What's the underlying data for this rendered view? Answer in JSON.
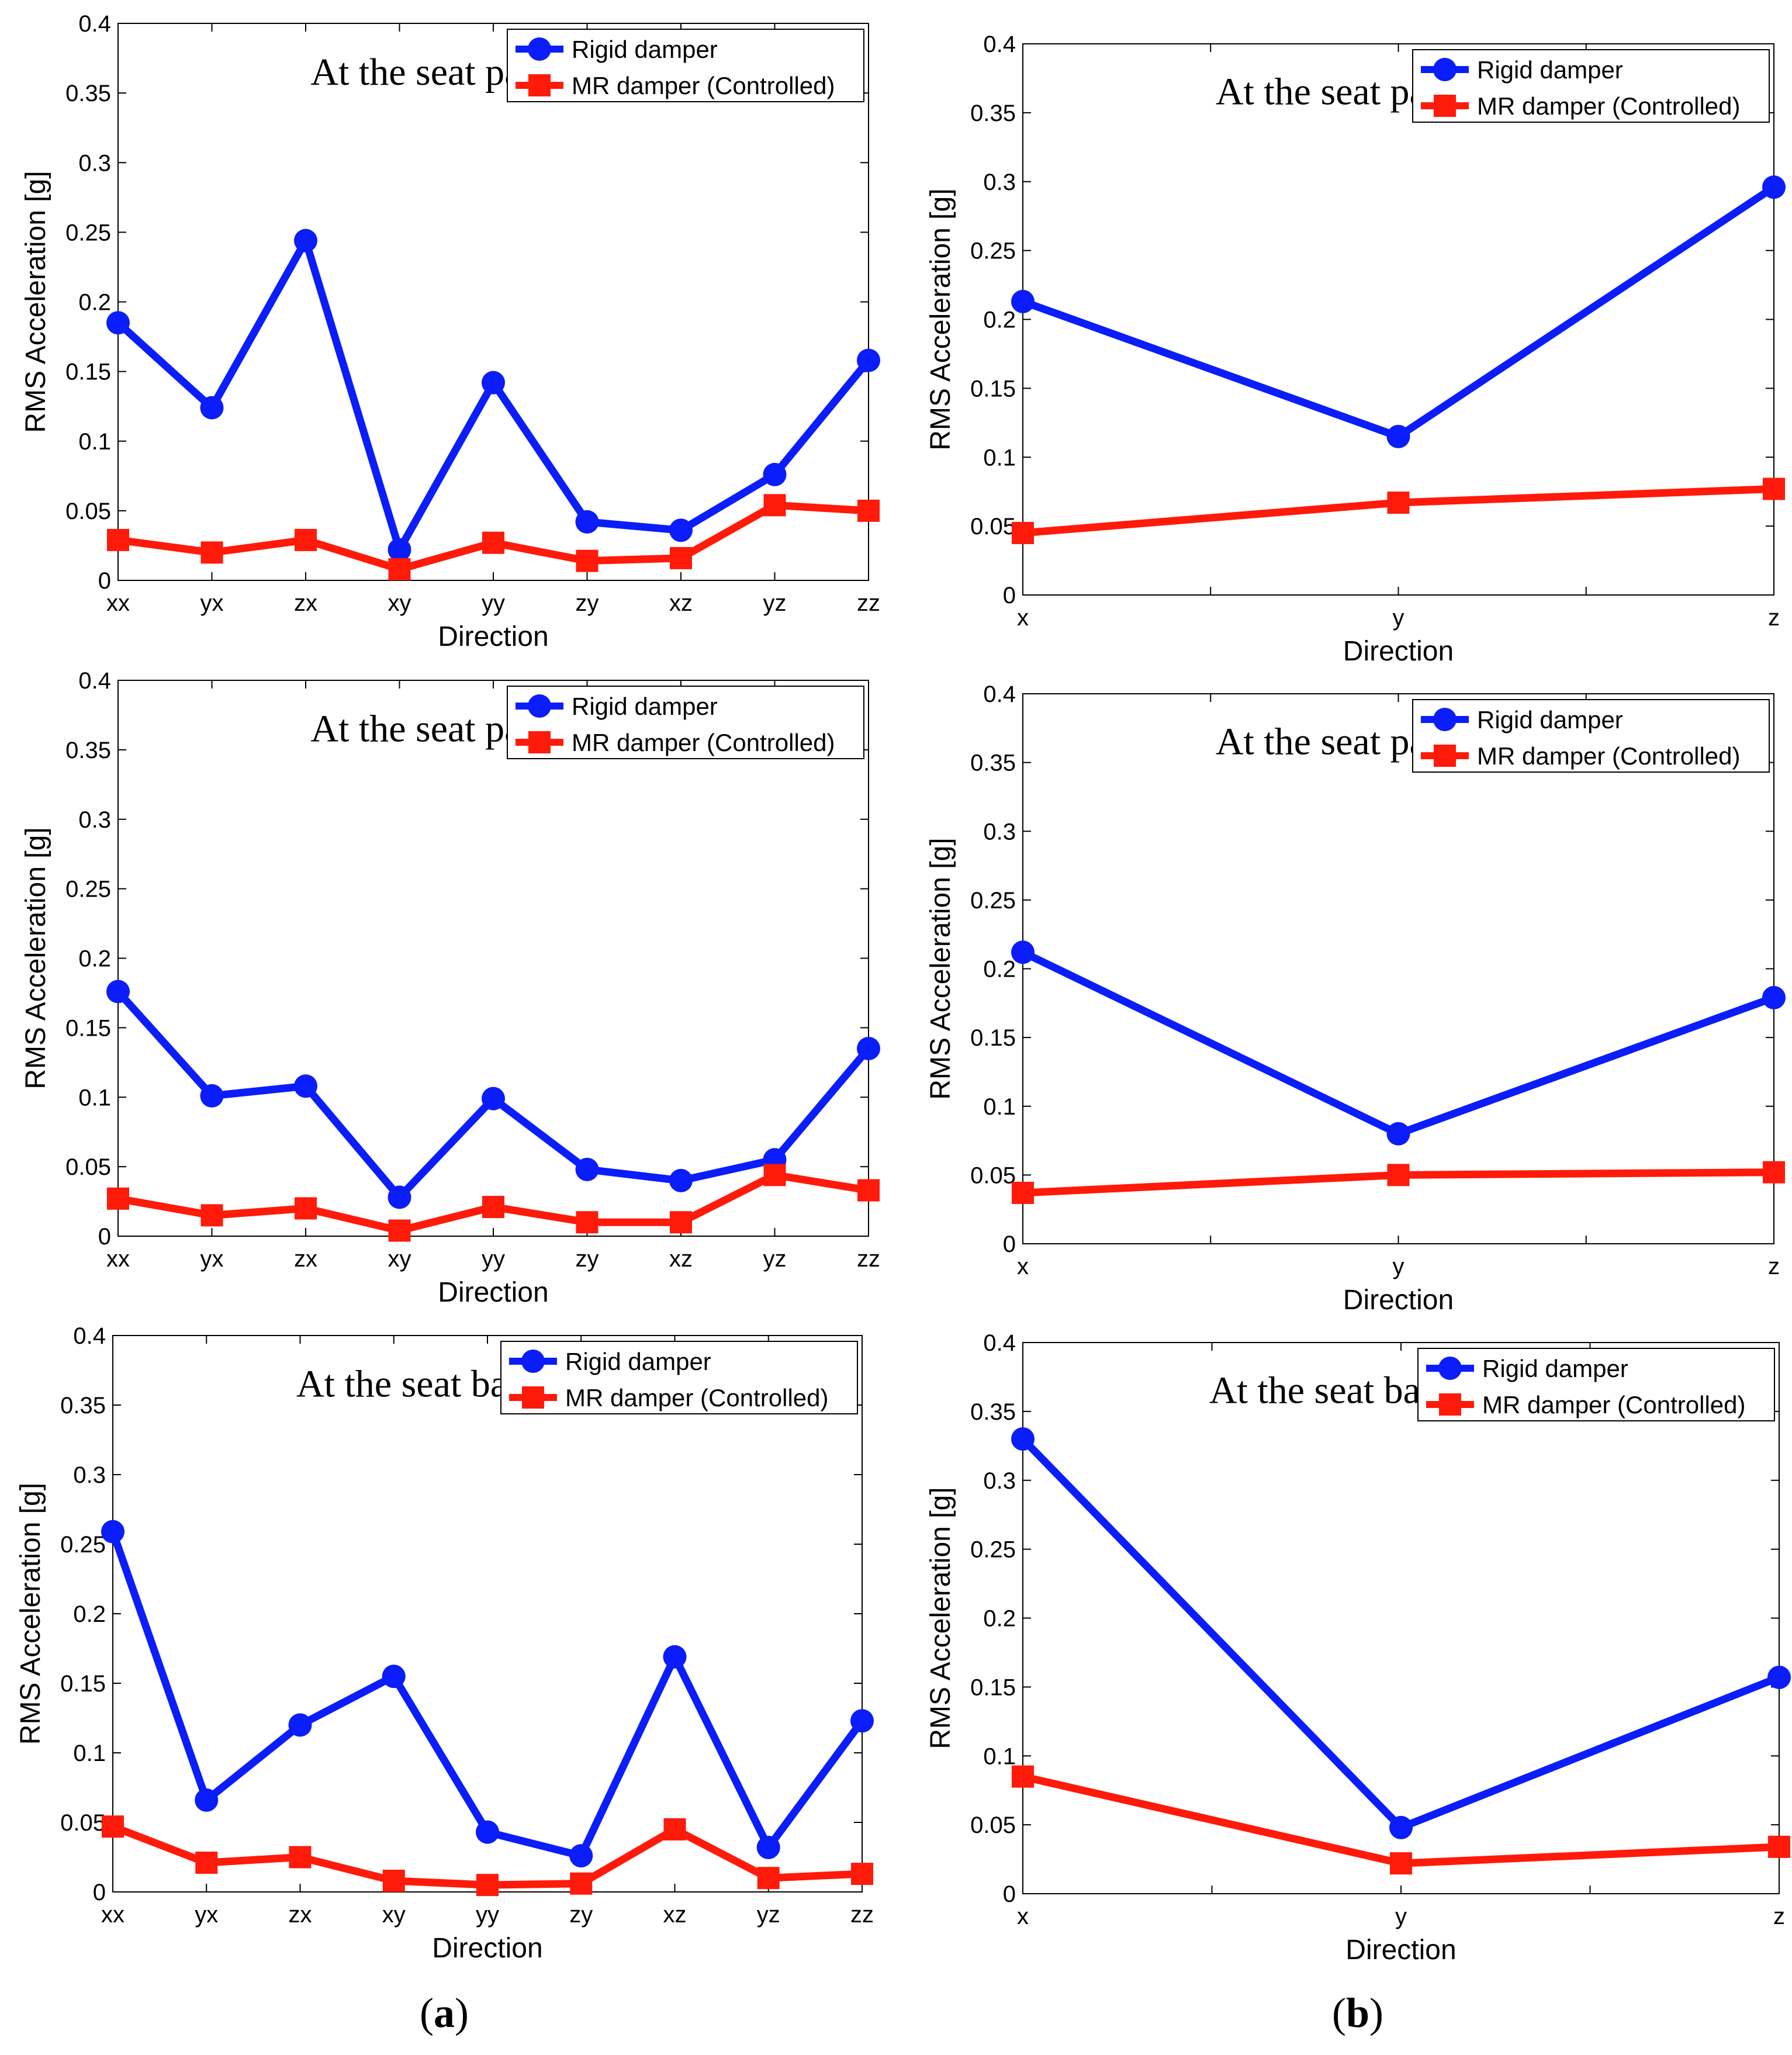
{
  "sub_labels": [
    "(a)",
    "(b)"
  ],
  "colors": {
    "rigid": "#0a1dfa",
    "mr": "#ff1a0a"
  },
  "chart_data": [
    {
      "id": "a1",
      "type": "line",
      "title": "At the seat pan",
      "xlabel": "Direction",
      "ylabel": "RMS Acceleration [g]",
      "categories": [
        "xx",
        "yx",
        "zx",
        "xy",
        "yy",
        "zy",
        "xz",
        "yz",
        "zz"
      ],
      "ylim": [
        0,
        0.4
      ],
      "yticks": [
        "0",
        "0.05",
        "0.1",
        "0.15",
        "0.2",
        "0.25",
        "0.3",
        "0.35",
        "0.4"
      ],
      "legend": [
        "Rigid damper",
        "MR damper (Controlled)"
      ],
      "series": [
        {
          "name": "Rigid damper",
          "values": [
            0.185,
            0.124,
            0.244,
            0.022,
            0.142,
            0.042,
            0.036,
            0.076,
            0.158
          ]
        },
        {
          "name": "MR damper (Controlled)",
          "values": [
            0.029,
            0.02,
            0.029,
            0.008,
            0.027,
            0.014,
            0.016,
            0.054,
            0.05
          ]
        }
      ]
    },
    {
      "id": "b1",
      "type": "line",
      "title": "At the seat pan",
      "xlabel": "Direction",
      "ylabel": "RMS Acceleration [g]",
      "categories": [
        "x",
        "y",
        "z"
      ],
      "ylim": [
        0,
        0.4
      ],
      "yticks": [
        "0",
        "0.05",
        "0.1",
        "0.15",
        "0.2",
        "0.25",
        "0.3",
        "0.35",
        "0.4"
      ],
      "legend": [
        "Rigid damper",
        "MR damper (Controlled)"
      ],
      "series": [
        {
          "name": "Rigid damper",
          "values": [
            0.213,
            0.115,
            0.296
          ]
        },
        {
          "name": "MR damper (Controlled)",
          "values": [
            0.045,
            0.067,
            0.077
          ]
        }
      ]
    },
    {
      "id": "a2",
      "type": "line",
      "title": "At the seat pad",
      "xlabel": "Direction",
      "ylabel": "RMS Acceleration [g]",
      "categories": [
        "xx",
        "yx",
        "zx",
        "xy",
        "yy",
        "zy",
        "xz",
        "yz",
        "zz"
      ],
      "ylim": [
        0,
        0.4
      ],
      "yticks": [
        "0",
        "0.05",
        "0.1",
        "0.15",
        "0.2",
        "0.25",
        "0.3",
        "0.35",
        "0.4"
      ],
      "legend": [
        "Rigid damper",
        "MR damper (Controlled)"
      ],
      "series": [
        {
          "name": "Rigid damper",
          "values": [
            0.176,
            0.101,
            0.108,
            0.028,
            0.099,
            0.048,
            0.04,
            0.055,
            0.135
          ]
        },
        {
          "name": "MR damper (Controlled)",
          "values": [
            0.027,
            0.015,
            0.02,
            0.004,
            0.021,
            0.01,
            0.01,
            0.044,
            0.033
          ]
        }
      ]
    },
    {
      "id": "b2",
      "type": "line",
      "title": "At the seat pad",
      "xlabel": "Direction",
      "ylabel": "RMS Acceleration [g]",
      "categories": [
        "x",
        "y",
        "z"
      ],
      "ylim": [
        0,
        0.4
      ],
      "yticks": [
        "0",
        "0.05",
        "0.1",
        "0.15",
        "0.2",
        "0.25",
        "0.3",
        "0.35",
        "0.4"
      ],
      "legend": [
        "Rigid damper",
        "MR damper (Controlled)"
      ],
      "series": [
        {
          "name": "Rigid damper",
          "values": [
            0.212,
            0.08,
            0.179
          ]
        },
        {
          "name": "MR damper (Controlled)",
          "values": [
            0.037,
            0.05,
            0.052
          ]
        }
      ]
    },
    {
      "id": "a3",
      "type": "line",
      "title": "At the seat back",
      "xlabel": "Direction",
      "ylabel": "RMS Acceleration [g]",
      "categories": [
        "xx",
        "yx",
        "zx",
        "xy",
        "yy",
        "zy",
        "xz",
        "yz",
        "zz"
      ],
      "ylim": [
        0,
        0.4
      ],
      "yticks": [
        "0",
        "0.05",
        "0.1",
        "0.15",
        "0.2",
        "0.25",
        "0.3",
        "0.35",
        "0.4"
      ],
      "legend": [
        "Rigid damper",
        "MR damper (Controlled)"
      ],
      "series": [
        {
          "name": "Rigid damper",
          "values": [
            0.259,
            0.066,
            0.12,
            0.155,
            0.043,
            0.026,
            0.169,
            0.032,
            0.123
          ]
        },
        {
          "name": "MR damper (Controlled)",
          "values": [
            0.047,
            0.021,
            0.025,
            0.008,
            0.005,
            0.006,
            0.045,
            0.01,
            0.013
          ]
        }
      ]
    },
    {
      "id": "b3",
      "type": "line",
      "title": "At the seat back",
      "xlabel": "Direction",
      "ylabel": "RMS Acceleration [g]",
      "categories": [
        "x",
        "y",
        "z"
      ],
      "ylim": [
        0,
        0.4
      ],
      "yticks": [
        "0",
        "0.05",
        "0.1",
        "0.15",
        "0.2",
        "0.25",
        "0.3",
        "0.35",
        "0.4"
      ],
      "legend": [
        "Rigid damper",
        "MR damper (Controlled)"
      ],
      "series": [
        {
          "name": "Rigid damper",
          "values": [
            0.33,
            0.048,
            0.157
          ]
        },
        {
          "name": "MR damper (Controlled)",
          "values": [
            0.085,
            0.022,
            0.034
          ]
        }
      ]
    }
  ]
}
